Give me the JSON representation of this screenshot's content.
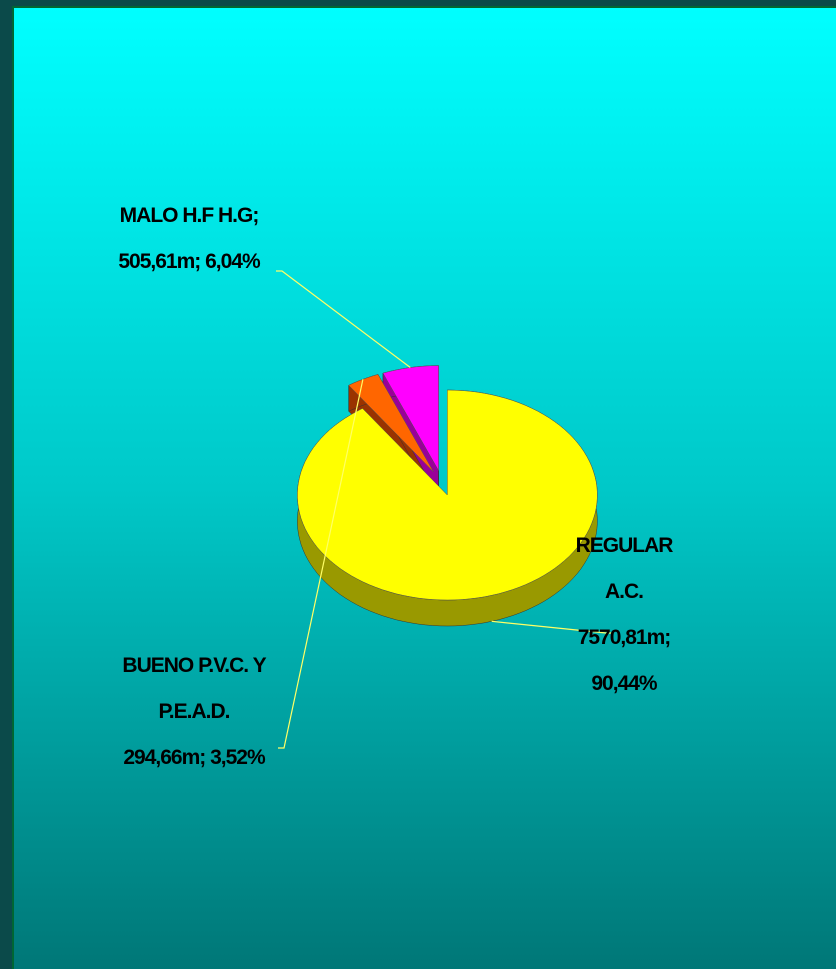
{
  "chart_data": {
    "type": "pie3d",
    "values": [
      7570.81,
      294.66,
      505.61
    ],
    "value_labels": [
      "REGULAR A.C. 7570,81m; 90,44%",
      "BUENO P.V.C. Y P.E.A.D. 294,66m; 3,52%",
      "MALO H.F H.G; 505,61m; 6,04%"
    ],
    "colors": [
      "#ffff00",
      "#ff6600",
      "#ff00ff"
    ],
    "side_colors": [
      "#999900",
      "#993300",
      "#990099"
    ]
  }
}
